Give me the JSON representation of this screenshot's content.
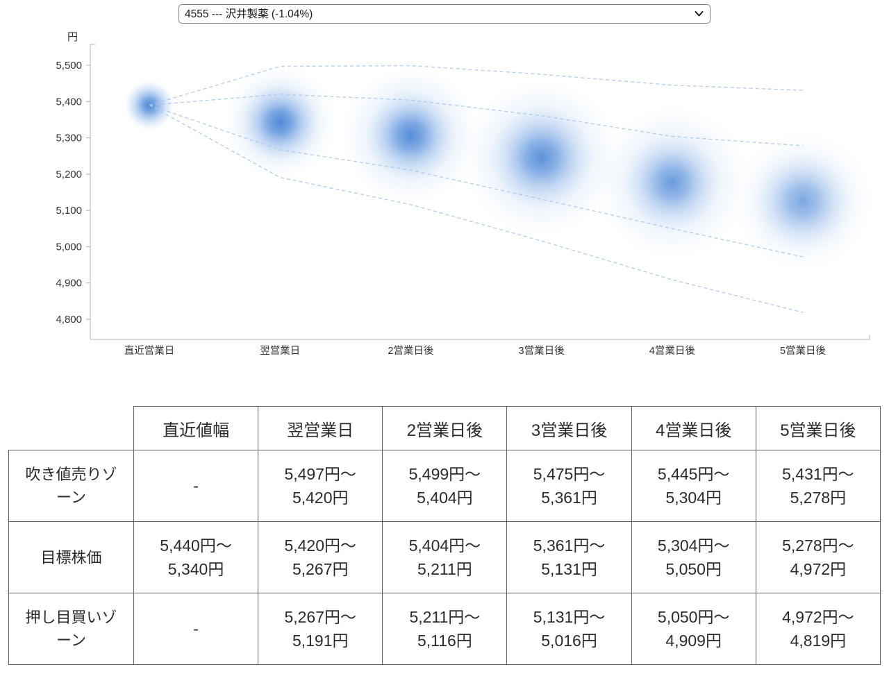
{
  "selector": {
    "selected": "4555 --- 沢井製薬 (-1.04%)"
  },
  "chart_data": {
    "type": "bubble-fan-forecast",
    "title": "",
    "ylabel": "円",
    "categories": [
      "直近営業日",
      "翌営業日",
      "2営業日後",
      "3営業日後",
      "4営業日後",
      "5営業日後"
    ],
    "yticks": [
      5500,
      5400,
      5300,
      5200,
      5100,
      5000,
      4900,
      4800
    ],
    "ylim": [
      4744,
      5557
    ],
    "bubbles": [
      {
        "category": "直近営業日",
        "value": 5390,
        "core_r": 34,
        "halo_r": 38,
        "fade": 1
      },
      {
        "category": "翌営業日",
        "value": 5343,
        "core_r": 58,
        "halo_r": 80,
        "fade": 1
      },
      {
        "category": "2営業日後",
        "value": 5307,
        "core_r": 66,
        "halo_r": 98,
        "fade": 0.95
      },
      {
        "category": "3営業日後",
        "value": 5246,
        "core_r": 76,
        "halo_r": 112,
        "fade": 0.88
      },
      {
        "category": "4営業日後",
        "value": 5177,
        "core_r": 72,
        "halo_r": 110,
        "fade": 0.78
      },
      {
        "category": "5営業日後",
        "value": 5125,
        "core_r": 74,
        "halo_r": 100,
        "fade": 0.66
      }
    ],
    "fan_lines": [
      {
        "name": "sell-zone-upper",
        "values": [
          5390,
          5497,
          5499,
          5475,
          5445,
          5431
        ]
      },
      {
        "name": "target-upper",
        "values": [
          5390,
          5420,
          5404,
          5361,
          5304,
          5278
        ]
      },
      {
        "name": "target-lower",
        "values": [
          5390,
          5267,
          5211,
          5131,
          5050,
          4972
        ]
      },
      {
        "name": "buy-zone-lower",
        "values": [
          5390,
          5191,
          5116,
          5016,
          4909,
          4819
        ]
      }
    ],
    "colors": {
      "bubble_core": "#4c86d6",
      "bubble_halo": "#b3cff2",
      "fan_line": "#a9c7e8",
      "axis": "#b0b0b0",
      "tick_text": "#333333"
    },
    "legend": "none",
    "grid": false
  },
  "table": {
    "headers": [
      "",
      "直近値幅",
      "翌営業日",
      "2営業日後",
      "3営業日後",
      "4営業日後",
      "5営業日後"
    ],
    "rows": [
      {
        "label": "吹き値売りゾーン",
        "values": [
          "-",
          "5,497円〜\n5,420円",
          "5,499円〜\n5,404円",
          "5,475円〜\n5,361円",
          "5,445円〜\n5,304円",
          "5,431円〜\n5,278円"
        ]
      },
      {
        "label": "目標株価",
        "values": [
          "5,440円〜\n5,340円",
          "5,420円〜\n5,267円",
          "5,404円〜\n5,211円",
          "5,361円〜\n5,131円",
          "5,304円〜\n5,050円",
          "5,278円〜\n4,972円"
        ]
      },
      {
        "label": "押し目買いゾーン",
        "values": [
          "-",
          "5,267円〜\n5,191円",
          "5,211円〜\n5,116円",
          "5,131円〜\n5,016円",
          "5,050円〜\n4,909円",
          "4,972円〜\n4,819円"
        ]
      }
    ]
  }
}
